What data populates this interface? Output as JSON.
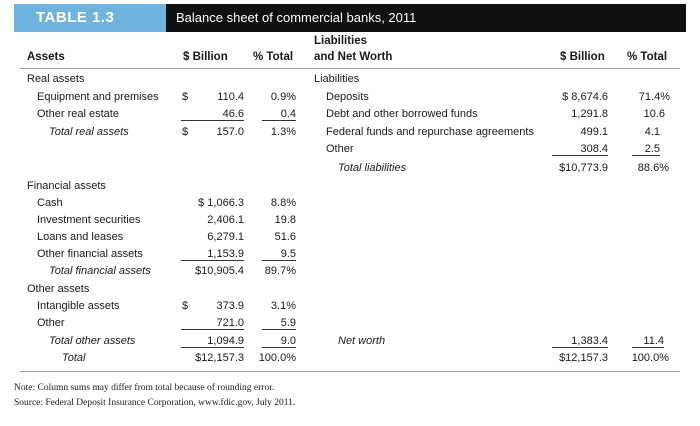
{
  "header": {
    "label": "TABLE 1.3",
    "title": "Balance sheet of commercial banks, 2011"
  },
  "columns": {
    "assets": "Assets",
    "billion": "$ Billion",
    "pct": "% Total",
    "liab_line1": "Liabilities",
    "liab_line2": "and Net Worth",
    "billion2": "$ Billion",
    "pct2": "% Total"
  },
  "assets": [
    {
      "label": "Real assets"
    },
    {
      "label": "Equipment and premises",
      "dollar": "$",
      "value": "110.4",
      "pct": "0.9%"
    },
    {
      "label": "Other real estate",
      "value": "46.6",
      "pct": "0.4"
    },
    {
      "label": "Total real assets",
      "dollar": "$",
      "value": "157.0",
      "pct": "1.3%"
    },
    {
      "label": "Financial assets"
    },
    {
      "label": "Cash",
      "value": "$ 1,066.3",
      "pct": "8.8%"
    },
    {
      "label": "Investment securities",
      "value": "2,406.1",
      "pct": "19.8"
    },
    {
      "label": "Loans and leases",
      "value": "6,279.1",
      "pct": "51.6"
    },
    {
      "label": "Other financial assets",
      "value": "1,153.9",
      "pct": "9.5"
    },
    {
      "label": "Total financial assets",
      "value": "$10,905.4",
      "pct": "89.7%"
    },
    {
      "label": "Other assets"
    },
    {
      "label": "Intangible assets",
      "dollar": "$",
      "value": "373.9",
      "pct": "3.1%"
    },
    {
      "label": "Other",
      "value": "721.0",
      "pct": "5.9"
    },
    {
      "label": "Total other assets",
      "value": "1,094.9",
      "pct": "9.0"
    },
    {
      "label": "Total",
      "value": "$12,157.3",
      "pct": "100.0%"
    }
  ],
  "liabilities": [
    {
      "label": "Liabilities"
    },
    {
      "label": "Deposits",
      "value": "$ 8,674.6",
      "pct": "71.4%"
    },
    {
      "label": "Debt and other borrowed funds",
      "value": "1,291.8",
      "pct": "10.6"
    },
    {
      "label": "Federal funds and repurchase agreements",
      "value": "499.1",
      "pct": "4.1"
    },
    {
      "label": "Other",
      "value": "308.4",
      "pct": "2.5"
    },
    {
      "label": "Total liabilities",
      "value": "$10,773.9",
      "pct": "88.6%"
    },
    {
      "label": "Net worth",
      "value": "1,383.4",
      "pct": "11.4"
    },
    {
      "label": "",
      "value": "$12,157.3",
      "pct": "100.0%"
    }
  ],
  "notes": {
    "note": "Note: Column sums may differ from total because of rounding error.",
    "source": "Source: Federal Deposit Insurance Corporation, www.fdic.gov, July 2011."
  }
}
